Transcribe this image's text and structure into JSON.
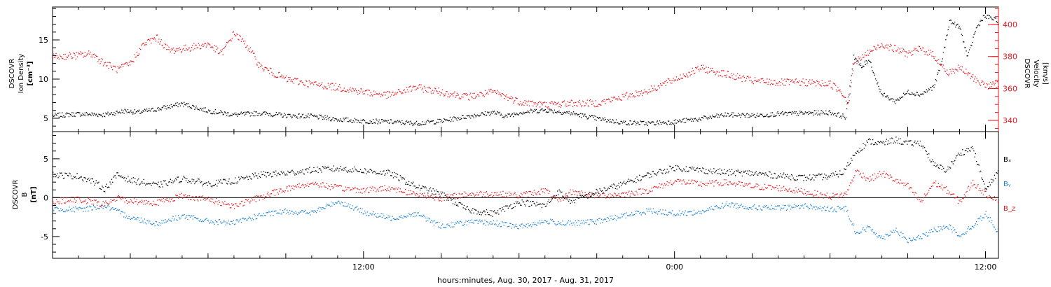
{
  "colors": {
    "black": "#000000",
    "red": "#e8171d",
    "blue": "#1d83d6"
  },
  "chart_data": [
    {
      "type": "scatter",
      "panel": "top",
      "xlabel": "hours:minutes, Aug. 30, 2017 - Aug. 31, 2017",
      "x_ticks": [
        "12:00",
        "0:00",
        "12:00"
      ],
      "x_range_hours": [
        0,
        36.5
      ],
      "left_axis": {
        "label_lines": [
          "DSCOVR",
          "Ion Density",
          "[cm⁻³]"
        ],
        "range": [
          3.3,
          19.2
        ],
        "ticks": [
          "5",
          "10",
          "15"
        ]
      },
      "right_axis": {
        "label_lines": [
          "DSCOVR",
          "Velocity",
          "[km/s]"
        ],
        "range": [
          333,
          411
        ],
        "ticks": [
          "340",
          "360",
          "380",
          "400"
        ],
        "color": "#e8171d"
      },
      "series": [
        {
          "color": "#000000",
          "axis": "left",
          "points": [
            [
              0,
              5.4
            ],
            [
              1,
              5.6
            ],
            [
              2,
              5.5
            ],
            [
              2.8,
              6.0
            ],
            [
              3.3,
              5.8
            ],
            [
              4,
              6.2
            ],
            [
              5,
              6.9
            ],
            [
              6,
              6.0
            ],
            [
              7,
              5.5
            ],
            [
              8,
              5.7
            ],
            [
              9,
              5.4
            ],
            [
              10,
              5.3
            ],
            [
              11,
              4.9
            ],
            [
              12,
              4.7
            ],
            [
              13,
              4.6
            ],
            [
              14,
              4.4
            ],
            [
              15,
              4.7
            ],
            [
              16,
              5.3
            ],
            [
              17,
              5.8
            ],
            [
              17.5,
              5.3
            ],
            [
              18,
              5.8
            ],
            [
              19,
              6.1
            ],
            [
              20,
              5.7
            ],
            [
              21,
              5.0
            ],
            [
              22,
              4.5
            ],
            [
              23,
              4.4
            ],
            [
              24,
              4.6
            ],
            [
              25,
              5.0
            ],
            [
              26,
              5.5
            ],
            [
              27,
              5.4
            ],
            [
              28,
              5.6
            ],
            [
              29,
              5.7
            ],
            [
              30,
              5.8
            ],
            [
              30.6,
              5.2
            ],
            [
              30.9,
              13
            ],
            [
              31.2,
              11.5
            ],
            [
              31.5,
              12.6
            ],
            [
              31.8,
              9.6
            ],
            [
              32,
              8.1
            ],
            [
              32.5,
              7.2
            ],
            [
              33,
              8.4
            ],
            [
              33.5,
              8.1
            ],
            [
              34,
              9.1
            ],
            [
              34.3,
              12.3
            ],
            [
              34.6,
              17.5
            ],
            [
              35,
              16.6
            ],
            [
              35.3,
              12.8
            ],
            [
              35.6,
              16.3
            ],
            [
              35.9,
              18
            ],
            [
              36.2,
              17.9
            ],
            [
              36.5,
              17.3
            ]
          ]
        },
        {
          "color": "#e8171d",
          "axis": "right",
          "points": [
            [
              0,
              380
            ],
            [
              1,
              381
            ],
            [
              1.5,
              382
            ],
            [
              2,
              376
            ],
            [
              2.5,
              372
            ],
            [
              3,
              376
            ],
            [
              3.5,
              388
            ],
            [
              4,
              392
            ],
            [
              4.5,
              384
            ],
            [
              5,
              385
            ],
            [
              6,
              388
            ],
            [
              6.5,
              382
            ],
            [
              7,
              395
            ],
            [
              7.5,
              387
            ],
            [
              8,
              374
            ],
            [
              9,
              366
            ],
            [
              10,
              363
            ],
            [
              11,
              361
            ],
            [
              12,
              358
            ],
            [
              13,
              356
            ],
            [
              14,
              361
            ],
            [
              15,
              358
            ],
            [
              16,
              355
            ],
            [
              17,
              358
            ],
            [
              18,
              352
            ],
            [
              19,
              350
            ],
            [
              20,
              351
            ],
            [
              21,
              351
            ],
            [
              22,
              355
            ],
            [
              23,
              359
            ],
            [
              24,
              366
            ],
            [
              25,
              373
            ],
            [
              26,
              369
            ],
            [
              27,
              365
            ],
            [
              28,
              364
            ],
            [
              29,
              364
            ],
            [
              30,
              363
            ],
            [
              30.4,
              359
            ],
            [
              30.7,
              351
            ],
            [
              30.9,
              376
            ],
            [
              31.5,
              383
            ],
            [
              32,
              388
            ],
            [
              32.5,
              385
            ],
            [
              33,
              382
            ],
            [
              33.5,
              385
            ],
            [
              34,
              381
            ],
            [
              34.5,
              370
            ],
            [
              35,
              373
            ],
            [
              35.5,
              367
            ],
            [
              36,
              362
            ],
            [
              36.5,
              363
            ]
          ]
        }
      ]
    },
    {
      "type": "scatter",
      "panel": "bottom",
      "y_axis": {
        "label_lines": [
          "DSCOVR",
          "B",
          "[nT]"
        ],
        "range": [
          -7.8,
          8.5
        ],
        "ticks": [
          "-5",
          "0",
          "5"
        ]
      },
      "legend_placement": "right",
      "series": [
        {
          "name": "Bₓ",
          "color": "#000000",
          "points": [
            [
              0,
              3.0
            ],
            [
              1,
              2.8
            ],
            [
              1.5,
              2.2
            ],
            [
              2,
              1.2
            ],
            [
              2.5,
              3.0
            ],
            [
              3,
              2.3
            ],
            [
              3.5,
              2.0
            ],
            [
              4,
              1.6
            ],
            [
              5,
              2.5
            ],
            [
              6,
              1.8
            ],
            [
              7,
              2.2
            ],
            [
              8,
              3.0
            ],
            [
              9,
              3.2
            ],
            [
              10,
              3.6
            ],
            [
              11,
              3.8
            ],
            [
              12,
              3.5
            ],
            [
              13,
              3.2
            ],
            [
              14,
              1.5
            ],
            [
              15,
              0.5
            ],
            [
              16,
              -1.5
            ],
            [
              17,
              -2.0
            ],
            [
              18,
              -0.5
            ],
            [
              19,
              -1.0
            ],
            [
              19.5,
              0.8
            ],
            [
              20,
              -0.4
            ],
            [
              21,
              0.8
            ],
            [
              22,
              1.8
            ],
            [
              23,
              3.0
            ],
            [
              24,
              3.9
            ],
            [
              25,
              3.6
            ],
            [
              26,
              3.3
            ],
            [
              27,
              3.2
            ],
            [
              28,
              2.9
            ],
            [
              29,
              2.6
            ],
            [
              29.5,
              2.7
            ],
            [
              30,
              2.8
            ],
            [
              30.5,
              3.3
            ],
            [
              31,
              6.0
            ],
            [
              31.5,
              7.3
            ],
            [
              32,
              7.0
            ],
            [
              32.5,
              7.5
            ],
            [
              33,
              7.0
            ],
            [
              33.5,
              7.1
            ],
            [
              34,
              4.2
            ],
            [
              34.5,
              3.6
            ],
            [
              35,
              5.8
            ],
            [
              35.5,
              6.4
            ],
            [
              36,
              1.0
            ],
            [
              36.5,
              3.6
            ]
          ]
        },
        {
          "name": "Bᵧ",
          "color": "#1d83d6",
          "points": [
            [
              0,
              -1.4
            ],
            [
              1,
              -1.5
            ],
            [
              2,
              -1.0
            ],
            [
              3,
              -2.5
            ],
            [
              4,
              -3.3
            ],
            [
              5,
              -2.3
            ],
            [
              6,
              -3.0
            ],
            [
              7,
              -3.2
            ],
            [
              8,
              -2.2
            ],
            [
              9,
              -1.7
            ],
            [
              10,
              -1.9
            ],
            [
              11,
              -0.4
            ],
            [
              12,
              -1.8
            ],
            [
              13,
              -2.6
            ],
            [
              14,
              -2.0
            ],
            [
              15,
              -3.6
            ],
            [
              16,
              -3.1
            ],
            [
              17,
              -3.2
            ],
            [
              18,
              -3.7
            ],
            [
              19,
              -3.0
            ],
            [
              20,
              -3.3
            ],
            [
              21,
              -3.0
            ],
            [
              22,
              -2.3
            ],
            [
              23,
              -1.6
            ],
            [
              24,
              -2.0
            ],
            [
              25,
              -1.8
            ],
            [
              26,
              -0.8
            ],
            [
              27,
              -1.2
            ],
            [
              28,
              -1.3
            ],
            [
              29,
              -1.0
            ],
            [
              30,
              -1.5
            ],
            [
              30.6,
              -1.3
            ],
            [
              31,
              -4.5
            ],
            [
              31.5,
              -3.8
            ],
            [
              32,
              -5.2
            ],
            [
              32.5,
              -4.0
            ],
            [
              33,
              -5.5
            ],
            [
              33.5,
              -5.0
            ],
            [
              34,
              -4.2
            ],
            [
              34.5,
              -3.5
            ],
            [
              35,
              -4.8
            ],
            [
              35.5,
              -3.6
            ],
            [
              36,
              -2.0
            ],
            [
              36.5,
              -4.5
            ]
          ]
        },
        {
          "name": "B_z",
          "color": "#e8171d",
          "points": [
            [
              0,
              -0.4
            ],
            [
              1,
              -0.2
            ],
            [
              2,
              -0.8
            ],
            [
              2.5,
              0
            ],
            [
              3,
              -0.4
            ],
            [
              4,
              -0.6
            ],
            [
              5,
              0.3
            ],
            [
              6,
              -0.2
            ],
            [
              7,
              -1.0
            ],
            [
              8,
              0.1
            ],
            [
              9,
              1.2
            ],
            [
              10,
              1.9
            ],
            [
              11,
              1.3
            ],
            [
              12,
              1.0
            ],
            [
              13,
              1.3
            ],
            [
              14,
              0.5
            ],
            [
              15,
              0
            ],
            [
              16,
              0.5
            ],
            [
              17,
              0.6
            ],
            [
              18,
              0.3
            ],
            [
              19,
              1.0
            ],
            [
              19.5,
              -0.5
            ],
            [
              20,
              0.8
            ],
            [
              21,
              0.3
            ],
            [
              22,
              0.5
            ],
            [
              23,
              1.0
            ],
            [
              24,
              2.2
            ],
            [
              25,
              1.8
            ],
            [
              26,
              2.0
            ],
            [
              27,
              1.5
            ],
            [
              28,
              1.3
            ],
            [
              29,
              0.8
            ],
            [
              30,
              0.2
            ],
            [
              30.6,
              0.5
            ],
            [
              31,
              3.5
            ],
            [
              31.5,
              2.4
            ],
            [
              32,
              3.2
            ],
            [
              32.5,
              2.3
            ],
            [
              33,
              1.5
            ],
            [
              33.5,
              -0.5
            ],
            [
              34,
              2.0
            ],
            [
              34.5,
              1.0
            ],
            [
              35,
              -0.5
            ],
            [
              35.5,
              2.0
            ],
            [
              36,
              0.5
            ],
            [
              36.5,
              -0.2
            ]
          ]
        }
      ]
    }
  ]
}
